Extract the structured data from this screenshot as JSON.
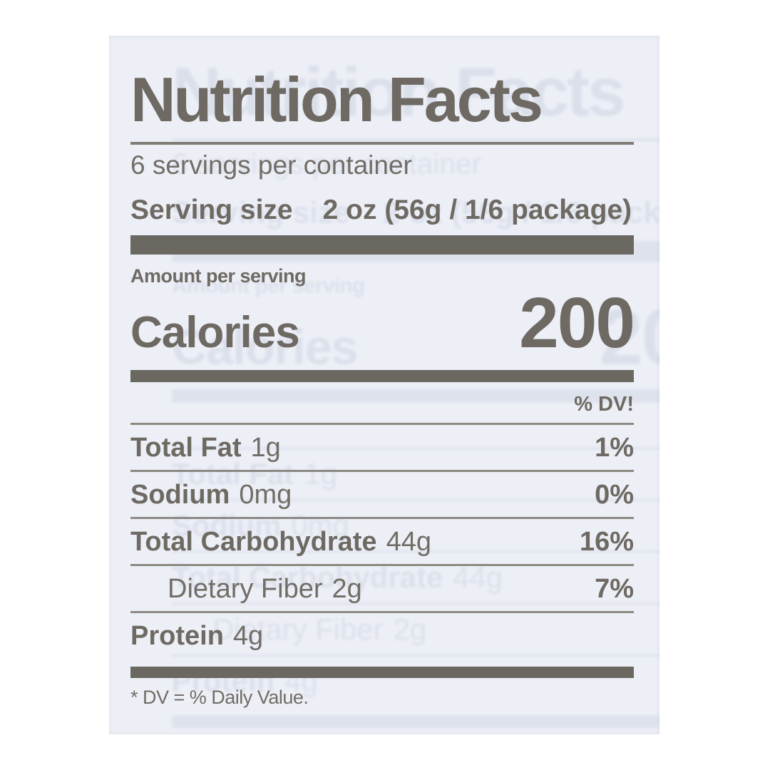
{
  "label": {
    "title": "Nutrition Facts",
    "servings_per_container": "6 servings per container",
    "serving_size_label": "Serving size",
    "serving_size_value": "2 oz (56g / 1/6 package)",
    "amount_per_serving": "Amount per serving",
    "calories_label": "Calories",
    "calories_value": "200",
    "dv_header": "% DV!",
    "rows": [
      {
        "name": "Total Fat",
        "amount": "1g",
        "dv": "1%",
        "bold": true,
        "indent": false
      },
      {
        "name": "Sodium",
        "amount": "0mg",
        "dv": "0%",
        "bold": true,
        "indent": false
      },
      {
        "name": "Total Carbohydrate",
        "amount": "44g",
        "dv": "16%",
        "bold": true,
        "indent": false
      },
      {
        "name": "Dietary Fiber",
        "amount": "2g",
        "dv": "7%",
        "bold": false,
        "indent": true
      },
      {
        "name": "Protein",
        "amount": "4g",
        "dv": "",
        "bold": true,
        "indent": false
      }
    ],
    "footnote": "* DV = % Daily Value.",
    "colors": {
      "ink": "#6e6a63",
      "label_background": "#edeff6",
      "page_background": "#ffffff",
      "ghost_print": "#8fa2bf"
    }
  }
}
